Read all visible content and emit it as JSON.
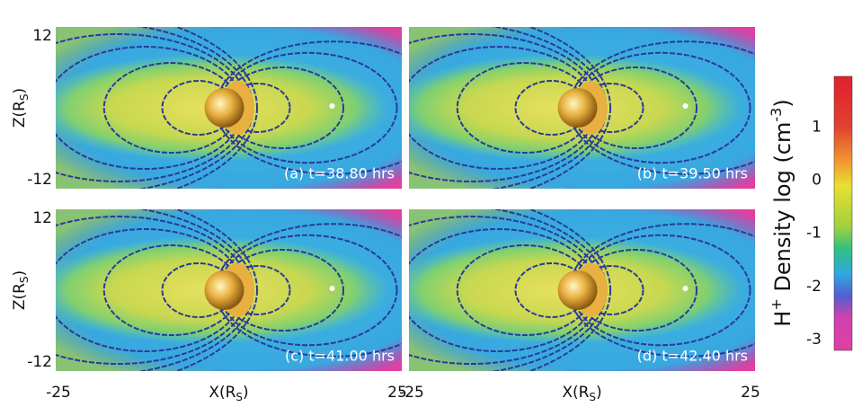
{
  "axes": {
    "ylabel": {
      "main": "Z(R",
      "sub": "S",
      "close": ")"
    },
    "xlabel": {
      "main": "X(R",
      "sub": "S",
      "close": ")"
    },
    "xlim": [
      -25,
      25
    ],
    "ylim": [
      -13.5,
      13.5
    ],
    "xticks": [
      -25,
      25
    ],
    "yticks": [
      12,
      -12
    ]
  },
  "panels": [
    {
      "label": "(a) t=38.80 hrs"
    },
    {
      "label": "(b) t=39.50 hrs"
    },
    {
      "label": "(c) t=41.00 hrs"
    },
    {
      "label": "(d) t=42.40 hrs"
    }
  ],
  "colorbar": {
    "label": {
      "h": "H",
      "plus": "+",
      "mid": " Density log (cm",
      "exp": "-3",
      "close": ")"
    },
    "clim": [
      -3.2,
      1.95
    ],
    "ticks": [
      1,
      0,
      -1,
      -2,
      -3
    ]
  }
}
